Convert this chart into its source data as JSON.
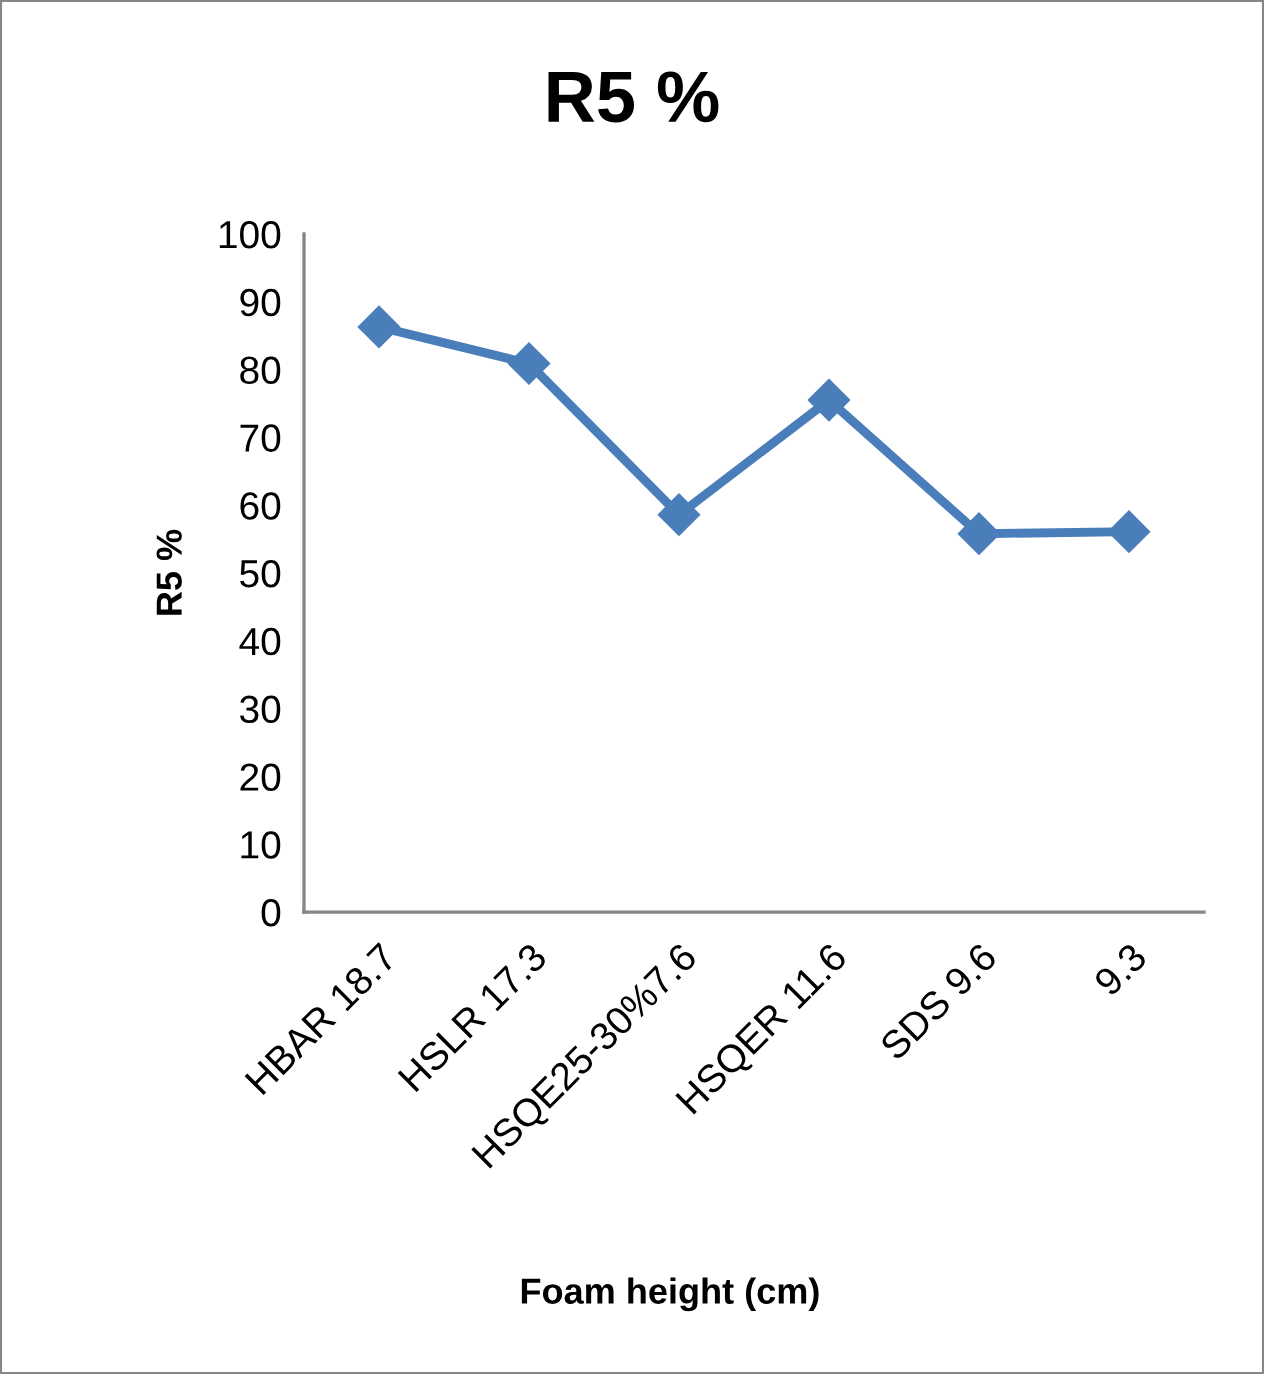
{
  "chart_data": {
    "type": "line",
    "title": "R5 %",
    "xlabel": "Foam height (cm)",
    "ylabel": "R5 %",
    "categories": [
      "HBAR 18.7",
      "HSLR 17.3",
      "HSQE25-30%7.6",
      "HSQER 11.6",
      "SDS 9.6",
      "9.3"
    ],
    "series": [
      {
        "color": "#4a7ebb",
        "values": [
          86.3,
          80.9,
          58.6,
          75.5,
          55.8,
          56.1
        ]
      }
    ],
    "ylim": [
      0,
      100
    ],
    "yticks": [
      0,
      10,
      20,
      30,
      40,
      50,
      60,
      70,
      80,
      90,
      100
    ],
    "marker": "diamond",
    "line_style": "solid"
  }
}
